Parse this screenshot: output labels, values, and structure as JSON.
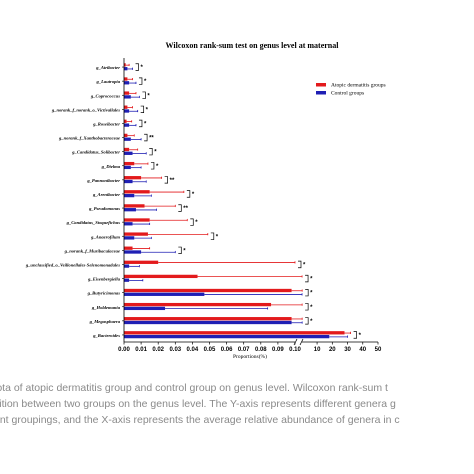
{
  "chart_data": {
    "type": "bar",
    "orientation": "horizontal",
    "title": "Wilcoxon rank-sum test on genus level at maternal",
    "xlabel": "Proportions(%)",
    "ylabel": "",
    "categories": [
      "g_Atribacter",
      "g_Lautropia",
      "g_Coprococcus",
      "g_norank_f_norank_o_Victivallales",
      "g_Roseibacter",
      "g_norank_f_Xanthobacteraceae",
      "g_Candidatus_Solibacter",
      "g_Dielma",
      "g_Pannonibacter",
      "g_Arenibacter",
      "g_Pseudomonas",
      "g_Candidatus_Stoquefichus",
      "g_Anaerofilum",
      "g_norank_f_Muribaculaceae",
      "g_unclassified_o_Veillonellales-Selenomonadales",
      "g_Eisenbergiella",
      "g_Butyricimonas",
      "g_Holdemania",
      "g_Megasphaera",
      "g_Bacteroides"
    ],
    "series": [
      {
        "name": "Atopic dermatitis groups",
        "color": "#e31a1c",
        "values": [
          0.001,
          0.002,
          0.003,
          0.002,
          0.0015,
          0.002,
          0.003,
          0.006,
          0.01,
          0.015,
          0.012,
          0.015,
          0.014,
          0.005,
          0.02,
          0.043,
          0.098,
          0.086,
          0.098,
          28.0
        ],
        "errors": [
          0.002,
          0.003,
          0.004,
          0.003,
          0.003,
          0.004,
          0.005,
          0.008,
          0.012,
          0.02,
          0.018,
          0.022,
          0.035,
          0.01,
          0.08,
          0.1,
          0.12,
          0.1,
          0.11,
          4.0
        ]
      },
      {
        "name": "Control groups",
        "color": "#1f1fb4",
        "values": [
          0.002,
          0.003,
          0.004,
          0.003,
          0.003,
          0.004,
          0.005,
          0.004,
          0.005,
          0.006,
          0.007,
          0.005,
          0.006,
          0.01,
          0.003,
          0.003,
          0.047,
          0.024,
          0.098,
          18.0
        ],
        "errors": [
          0.003,
          0.004,
          0.005,
          0.005,
          0.004,
          0.006,
          0.008,
          0.006,
          0.008,
          0.01,
          0.012,
          0.01,
          0.01,
          0.02,
          0.006,
          0.008,
          0.09,
          0.06,
          0.11,
          12.0
        ]
      }
    ],
    "significance": [
      "*",
      "*",
      "*",
      "*",
      "*",
      "**",
      "*",
      "*",
      "**",
      "*",
      "**",
      "*",
      "*",
      "*",
      "*",
      "*",
      "*",
      "*",
      "*",
      "*"
    ],
    "x_axis_segments": [
      {
        "range": [
          0,
          0.1
        ],
        "ticks": [
          "0.00",
          "0.01",
          "0.02",
          "0.03",
          "0.04",
          "0.05",
          "0.06",
          "0.07",
          "0.08",
          "0.09",
          "0.10"
        ]
      },
      {
        "range": [
          0.1,
          50
        ],
        "ticks": [
          "10",
          "20",
          "30",
          "40",
          "50"
        ]
      }
    ],
    "legend_position": "top-right",
    "grid": false
  },
  "caption_lines": [
    "iota of atopic dermatitis group and control group on genus level. Wilcoxon rank-sum t",
    "sition between two groups on the genus level. The Y-axis represents different genera g",
    "ent groupings, and the X-axis represents the average relative abundance of genera in c"
  ]
}
